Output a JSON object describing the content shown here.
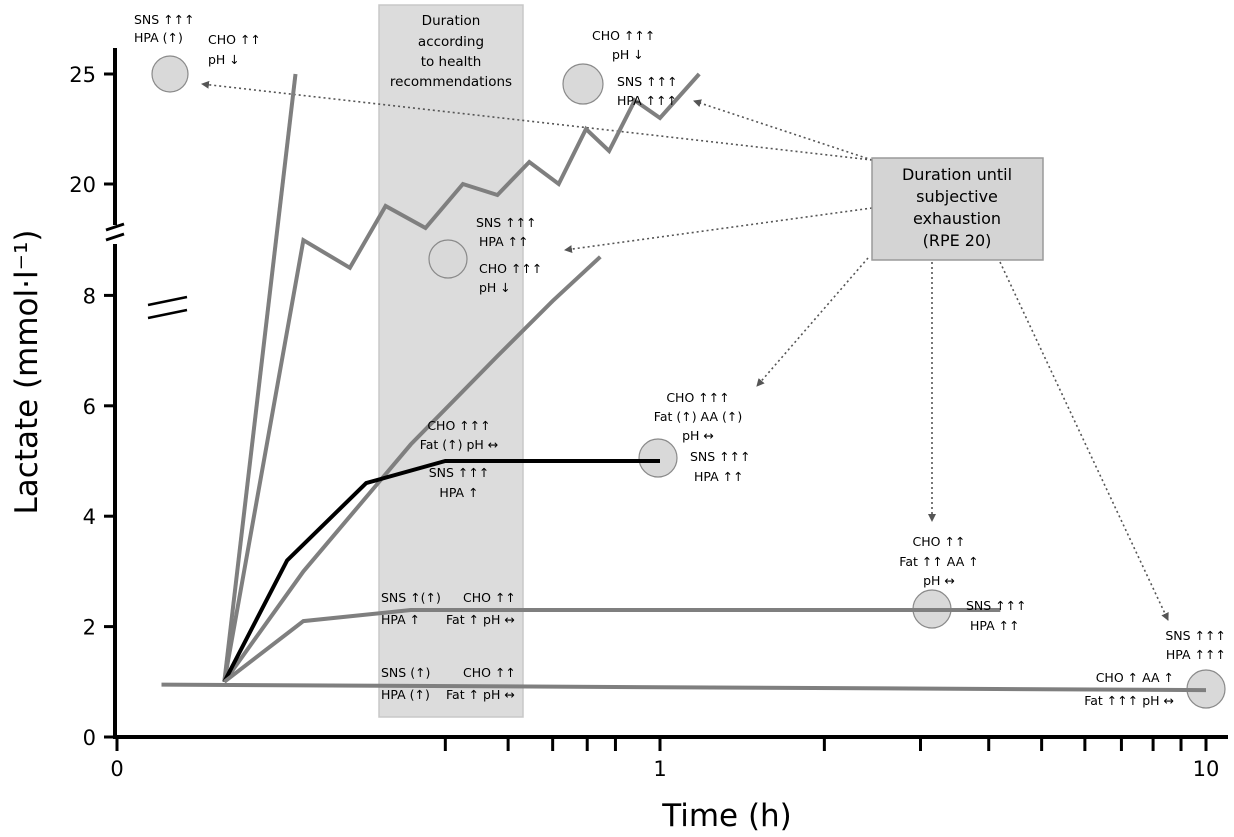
{
  "chart_data": {
    "type": "line",
    "xlabel": "Time (h)",
    "ylabel": "Lactate (mmol·l⁻¹)",
    "x_scale": "log",
    "y_scale": "broken",
    "y_ticks": [
      0,
      2,
      4,
      6,
      8,
      20,
      25
    ],
    "x_tick_labels": [
      "0",
      "1",
      "10"
    ],
    "y_upper_segment_range": [
      17.5,
      26
    ],
    "y_lower_segment_range": [
      0,
      9
    ],
    "band": {
      "label_lines": [
        "Duration",
        "according",
        "to health",
        "recommendations"
      ],
      "x_range_h": [
        0.22,
        0.66
      ]
    },
    "exhaustion_box": {
      "label_lines": [
        "Duration until",
        "subjective",
        "exhaustion",
        "(RPE 20)"
      ]
    },
    "series": [
      {
        "points": [
          [
            0.06,
            1
          ],
          [
            0.095,
            25
          ]
        ],
        "end_annotation": {
          "left": [
            "SNS ↑↑↑",
            "HPA (↑)"
          ],
          "right": [
            "CHO ↑↑",
            "pH ↓"
          ]
        }
      },
      {
        "points": [
          [
            0.06,
            1
          ],
          [
            0.1,
            9
          ],
          [
            0.135,
            8.5
          ],
          [
            0.17,
            19
          ],
          [
            0.22,
            18
          ],
          [
            0.28,
            20
          ],
          [
            0.35,
            19.5
          ],
          [
            0.43,
            21
          ],
          [
            0.52,
            20
          ],
          [
            0.62,
            22.5
          ],
          [
            0.72,
            21.5
          ],
          [
            0.85,
            23.8
          ],
          [
            1.0,
            23
          ],
          [
            1.18,
            25
          ]
        ],
        "end_annotation": {
          "top": [
            "CHO ↑↑↑",
            "pH ↓"
          ],
          "right": [
            "SNS ↑↑↑",
            "HPA ↑↑↑"
          ]
        }
      },
      {
        "points": [
          [
            0.06,
            1
          ],
          [
            0.1,
            3
          ],
          [
            0.2,
            5.3
          ],
          [
            0.35,
            6.9
          ],
          [
            0.5,
            7.9
          ],
          [
            0.68,
            8.7
          ]
        ],
        "end_annotation": {
          "lines": [
            "SNS ↑↑↑",
            "HPA ↑↑",
            "CHO ↑↑↑",
            "pH ↓"
          ]
        }
      },
      {
        "points": [
          [
            0.06,
            1
          ],
          [
            0.09,
            3.2
          ],
          [
            0.15,
            4.6
          ],
          [
            0.25,
            5
          ],
          [
            1.0,
            5
          ]
        ],
        "highlighted": true,
        "mid_annotation": [
          "CHO ↑↑↑",
          "Fat (↑) pH ↔",
          "SNS ↑↑↑",
          "HPA ↑"
        ],
        "end_annotation": {
          "top": [
            "CHO ↑↑↑",
            "Fat (↑)  AA (↑)",
            "pH ↔"
          ],
          "right": [
            "SNS ↑↑↑",
            "HPA ↑↑"
          ]
        }
      },
      {
        "points": [
          [
            0.06,
            1
          ],
          [
            0.1,
            2.1
          ],
          [
            0.2,
            2.3
          ],
          [
            4.2,
            2.3
          ]
        ],
        "mid_annotation": {
          "left": [
            "SNS ↑(↑)",
            "HPA ↑"
          ],
          "right": [
            "CHO ↑↑",
            "Fat ↑ pH ↔"
          ]
        },
        "end_annotation": {
          "top": [
            "CHO ↑↑",
            "Fat ↑↑  AA ↑",
            "pH ↔"
          ],
          "right": [
            "SNS ↑↑↑",
            "HPA ↑↑"
          ]
        }
      },
      {
        "points": [
          [
            0.04,
            0.95
          ],
          [
            10,
            0.85
          ]
        ],
        "mid_annotation": {
          "left": [
            "SNS (↑)",
            "HPA (↑)"
          ],
          "right": [
            "CHO ↑↑",
            "Fat ↑ pH ↔"
          ]
        },
        "end_annotation": {
          "top": [
            "SNS ↑↑↑",
            "HPA ↑↑↑"
          ],
          "left": [
            "CHO ↑ AA ↑",
            "Fat ↑↑↑ pH ↔"
          ]
        }
      }
    ],
    "colors": {
      "grey_line": "#7f7f7f",
      "black_line": "#000000",
      "band": "#dcdcdc",
      "box": "#d4d4d4",
      "circle": "#d9d9d9",
      "arrow": "#555555"
    }
  }
}
